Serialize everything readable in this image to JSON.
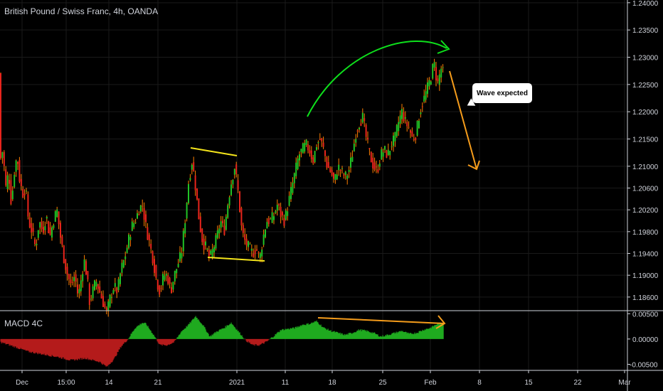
{
  "header": {
    "title": "British Pound / Swiss Franc, 4h, OANDA"
  },
  "macd": {
    "label": "MACD 4C"
  },
  "annotation": {
    "callout_text": "Wave expected"
  },
  "colors": {
    "up": "#21c326",
    "down": "#e8241c",
    "wick": "#ff7f00",
    "macd_pos": "#1faa1f",
    "macd_neg": "#b41b1b",
    "trend_lines": "#f5e51b",
    "arc": "#0ee01c",
    "arrow_down": "#f59c1b",
    "macd_line": "#f59c1b",
    "grid": "#1a1a1a",
    "axis_text": "#d1d4dc"
  },
  "chart_data": [
    {
      "type": "candlestick",
      "title": "British Pound / Swiss Franc, 4h, OANDA",
      "y_ticks": [
        "1.24000",
        "1.23500",
        "1.23000",
        "1.22500",
        "1.22000",
        "1.21500",
        "1.21000",
        "1.20600",
        "1.20200",
        "1.19800",
        "1.19400",
        "1.19000",
        "1.18600"
      ],
      "y_tick_values": [
        1.24,
        1.235,
        1.23,
        1.225,
        1.22,
        1.215,
        1.21,
        1.206,
        1.202,
        1.198,
        1.194,
        1.19,
        1.186
      ],
      "ylim": [
        1.1835,
        1.2405
      ],
      "x_ticks": [
        "Dec",
        "15:00",
        "14",
        "21",
        "2021",
        "11",
        "18",
        "25",
        "Feb",
        "8",
        "15",
        "22",
        "Mar"
      ],
      "price_path": [
        [
          0,
          1.211
        ],
        [
          4,
          1.213
        ],
        [
          8,
          1.206
        ],
        [
          12,
          1.209
        ],
        [
          16,
          1.203
        ],
        [
          20,
          1.209
        ],
        [
          24,
          1.212
        ],
        [
          28,
          1.207
        ],
        [
          32,
          1.205
        ],
        [
          36,
          1.206
        ],
        [
          40,
          1.2
        ],
        [
          45,
          1.198
        ],
        [
          50,
          1.195
        ],
        [
          55,
          1.2
        ],
        [
          60,
          1.198
        ],
        [
          65,
          1.201
        ],
        [
          70,
          1.197
        ],
        [
          75,
          1.2
        ],
        [
          80,
          1.202
        ],
        [
          85,
          1.197
        ],
        [
          90,
          1.193
        ],
        [
          95,
          1.19
        ],
        [
          100,
          1.188
        ],
        [
          105,
          1.19
        ],
        [
          110,
          1.186
        ],
        [
          115,
          1.19
        ],
        [
          118,
          1.193
        ],
        [
          122,
          1.19
        ],
        [
          126,
          1.185
        ],
        [
          130,
          1.187
        ],
        [
          135,
          1.189
        ],
        [
          140,
          1.187
        ],
        [
          145,
          1.185
        ],
        [
          150,
          1.183
        ],
        [
          155,
          1.186
        ],
        [
          160,
          1.188
        ],
        [
          165,
          1.187
        ],
        [
          170,
          1.191
        ],
        [
          175,
          1.193
        ],
        [
          180,
          1.196
        ],
        [
          185,
          1.199
        ],
        [
          190,
          1.2
        ],
        [
          195,
          1.202
        ],
        [
          200,
          1.203
        ],
        [
          205,
          1.199
        ],
        [
          210,
          1.196
        ],
        [
          215,
          1.193
        ],
        [
          220,
          1.189
        ],
        [
          225,
          1.187
        ],
        [
          230,
          1.19
        ],
        [
          235,
          1.19
        ],
        [
          240,
          1.187
        ],
        [
          245,
          1.19
        ],
        [
          250,
          1.192
        ],
        [
          255,
          1.194
        ],
        [
          260,
          1.2
        ],
        [
          265,
          1.207
        ],
        [
          270,
          1.211
        ],
        [
          275,
          1.206
        ],
        [
          280,
          1.2
        ],
        [
          285,
          1.196
        ],
        [
          290,
          1.195
        ],
        [
          295,
          1.193
        ],
        [
          300,
          1.195
        ],
        [
          305,
          1.197
        ],
        [
          310,
          1.2
        ],
        [
          315,
          1.198
        ],
        [
          320,
          1.203
        ],
        [
          325,
          1.207
        ],
        [
          330,
          1.21
        ],
        [
          335,
          1.205
        ],
        [
          340,
          1.198
        ],
        [
          345,
          1.196
        ],
        [
          350,
          1.195
        ],
        [
          355,
          1.194
        ],
        [
          360,
          1.195
        ],
        [
          365,
          1.193
        ],
        [
          370,
          1.197
        ],
        [
          375,
          1.2
        ],
        [
          380,
          1.2
        ],
        [
          385,
          1.201
        ],
        [
          390,
          1.203
        ],
        [
          395,
          1.201
        ],
        [
          400,
          1.2
        ],
        [
          405,
          1.203
        ],
        [
          410,
          1.206
        ],
        [
          415,
          1.209
        ],
        [
          420,
          1.212
        ],
        [
          425,
          1.213
        ],
        [
          430,
          1.214
        ],
        [
          435,
          1.213
        ],
        [
          440,
          1.211
        ],
        [
          445,
          1.214
        ],
        [
          450,
          1.215
        ],
        [
          455,
          1.213
        ],
        [
          460,
          1.21
        ],
        [
          465,
          1.209
        ],
        [
          470,
          1.207
        ],
        [
          475,
          1.21
        ],
        [
          480,
          1.209
        ],
        [
          485,
          1.208
        ],
        [
          490,
          1.209
        ],
        [
          495,
          1.212
        ],
        [
          500,
          1.216
        ],
        [
          505,
          1.218
        ],
        [
          510,
          1.219
        ],
        [
          515,
          1.215
        ],
        [
          520,
          1.212
        ],
        [
          525,
          1.21
        ],
        [
          530,
          1.209
        ],
        [
          535,
          1.212
        ],
        [
          540,
          1.213
        ],
        [
          545,
          1.212
        ],
        [
          550,
          1.214
        ],
        [
          555,
          1.215
        ],
        [
          560,
          1.218
        ],
        [
          565,
          1.22
        ],
        [
          570,
          1.218
        ],
        [
          575,
          1.217
        ],
        [
          580,
          1.215
        ],
        [
          585,
          1.216
        ],
        [
          590,
          1.22
        ],
        [
          595,
          1.222
        ],
        [
          600,
          1.224
        ],
        [
          605,
          1.226
        ],
        [
          610,
          1.229
        ],
        [
          615,
          1.225
        ],
        [
          620,
          1.228
        ],
        [
          623,
          1.227
        ]
      ]
    },
    {
      "type": "bar",
      "title": "MACD 4C",
      "y_ticks": [
        "0.00500",
        "0.00000",
        "-0.00500"
      ],
      "y_tick_values": [
        0.005,
        0,
        -0.005
      ],
      "ylim": [
        -0.0062,
        0.0056
      ],
      "histogram_path": [
        [
          0,
          -0.0006
        ],
        [
          20,
          -0.0015
        ],
        [
          40,
          -0.0025
        ],
        [
          60,
          -0.003
        ],
        [
          80,
          -0.0035
        ],
        [
          100,
          -0.0042
        ],
        [
          120,
          -0.0038
        ],
        [
          140,
          -0.0045
        ],
        [
          150,
          -0.0055
        ],
        [
          160,
          -0.004
        ],
        [
          170,
          -0.0015
        ],
        [
          180,
          0.0
        ],
        [
          190,
          0.0022
        ],
        [
          200,
          0.0032
        ],
        [
          205,
          0.003
        ],
        [
          215,
          0.001
        ],
        [
          225,
          -0.0012
        ],
        [
          235,
          -0.0012
        ],
        [
          245,
          -0.0006
        ],
        [
          255,
          0.0015
        ],
        [
          265,
          0.0028
        ],
        [
          275,
          0.0045
        ],
        [
          285,
          0.0028
        ],
        [
          295,
          0.0005
        ],
        [
          305,
          0.0015
        ],
        [
          315,
          0.0022
        ],
        [
          325,
          0.0032
        ],
        [
          335,
          0.0015
        ],
        [
          345,
          -0.0002
        ],
        [
          355,
          -0.0012
        ],
        [
          365,
          -0.0012
        ],
        [
          375,
          -0.0005
        ],
        [
          385,
          0.0006
        ],
        [
          395,
          0.0018
        ],
        [
          405,
          0.002
        ],
        [
          415,
          0.0022
        ],
        [
          425,
          0.0028
        ],
        [
          435,
          0.003
        ],
        [
          445,
          0.0035
        ],
        [
          455,
          0.0022
        ],
        [
          465,
          0.0016
        ],
        [
          475,
          0.0012
        ],
        [
          485,
          0.0008
        ],
        [
          495,
          0.0012
        ],
        [
          505,
          0.0018
        ],
        [
          515,
          0.0016
        ],
        [
          525,
          0.0012
        ],
        [
          535,
          0.0005
        ],
        [
          545,
          0.0008
        ],
        [
          555,
          0.0012
        ],
        [
          565,
          0.0016
        ],
        [
          575,
          0.001
        ],
        [
          585,
          0.0012
        ],
        [
          595,
          0.0018
        ],
        [
          605,
          0.0022
        ],
        [
          615,
          0.003
        ],
        [
          623,
          0.0032
        ]
      ]
    }
  ]
}
